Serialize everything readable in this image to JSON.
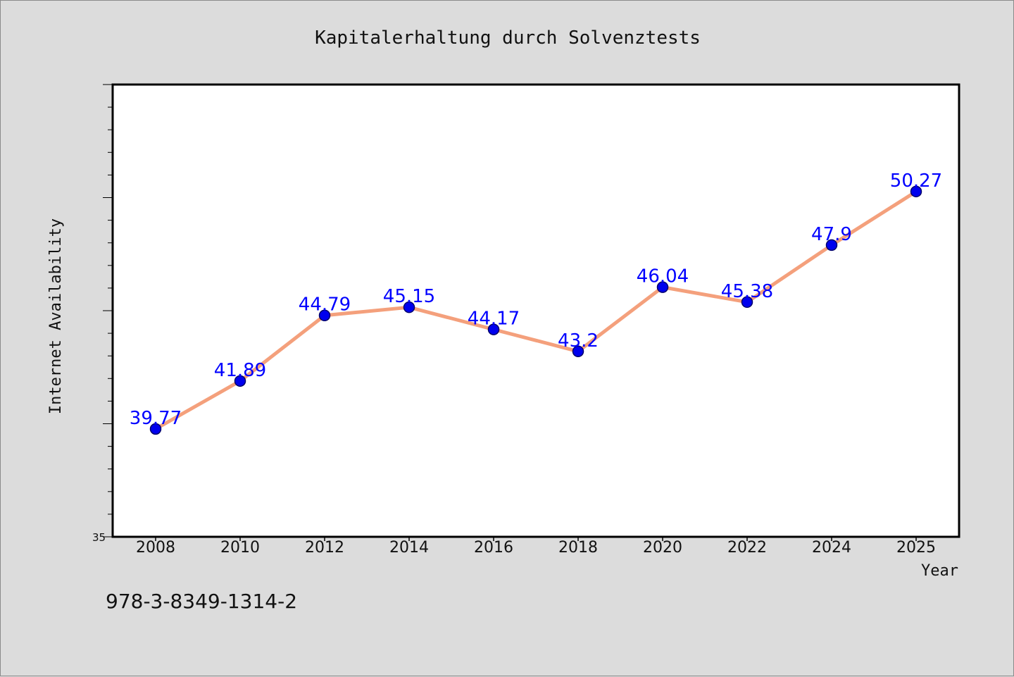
{
  "chart_data": {
    "type": "line",
    "title": "Kapitalerhaltung durch Solvenztests",
    "xlabel": "Year",
    "ylabel": "Internet Availability",
    "x": [
      "2008",
      "2010",
      "2012",
      "2014",
      "2016",
      "2018",
      "2020",
      "2022",
      "2024",
      "2025"
    ],
    "series": [
      {
        "values": [
          39.77,
          41.89,
          44.79,
          45.15,
          44.17,
          43.2,
          46.04,
          45.38,
          47.9,
          50.27
        ],
        "labels": [
          "39.77",
          "41.89",
          "44.79",
          "45.15",
          "44.17",
          "43.2",
          "46.04",
          "45.38",
          "47.9",
          "50.27"
        ],
        "line_color": "#f4a07c",
        "marker_color": "#0000ee"
      }
    ],
    "ylim": [
      35,
      55
    ],
    "y_tick_labels": [
      "35"
    ],
    "grid": false,
    "legend": "none"
  },
  "footnote": "978-3-8349-1314-2",
  "colors": {
    "background": "#dcdcdc",
    "plot_area": "#ffffff",
    "data_label": "#0000ff"
  }
}
